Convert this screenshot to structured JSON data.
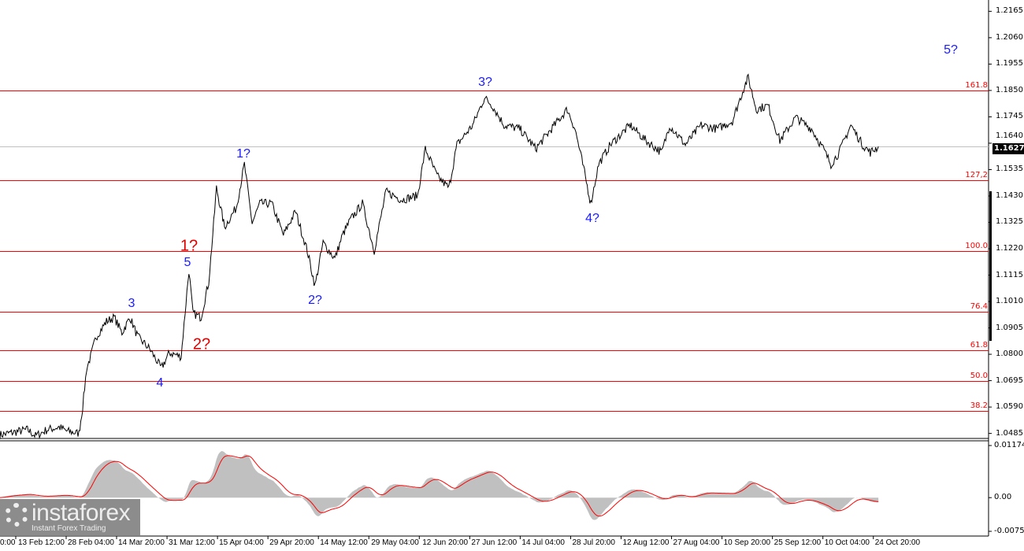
{
  "chart_data": {
    "type": "line",
    "title": "",
    "x_unit": "days since 14 Mar 20:00",
    "price_axis": {
      "ticks": [
        "1.2165",
        "1.2060",
        "1.1955",
        "1.1850",
        "1.1745",
        "1.1640",
        "1.1535",
        "1.1430",
        "1.1325",
        "1.1220",
        "1.1115",
        "1.1010",
        "1.0905",
        "1.0800",
        "1.0695",
        "1.0590",
        "1.0485"
      ],
      "range": [
        1.0465,
        1.221
      ]
    },
    "current_price": "1.1627",
    "time_axis": {
      "ticks": [
        "0:00",
        "13 Feb 12:00",
        "28 Feb 04:00",
        "14 Mar 20:00",
        "31 Mar 12:00",
        "15 Apr 04:00",
        "29 Apr 20:00",
        "14 May 12:00",
        "29 May 04:00",
        "12 Jun 20:00",
        "27 Jun 12:00",
        "14 Jul 04:00",
        "28 Jul 20:00",
        "12 Aug 12:00",
        "27 Aug 04:00",
        "10 Sep 20:00",
        "25 Sep 12:00",
        "10 Oct 04:00",
        "24 Oct 20:00"
      ],
      "tick_days": [
        -34,
        -19,
        -4,
        0,
        15,
        30,
        45,
        60,
        75,
        90,
        105,
        120,
        135,
        150,
        165,
        180,
        195,
        210,
        225
      ]
    },
    "price_waypoints": [
      [
        -34.7,
        1.0479
      ],
      [
        -26.5,
        1.05
      ],
      [
        -24.1,
        1.0475
      ],
      [
        -20.6,
        1.05
      ],
      [
        -17.1,
        1.051
      ],
      [
        -14.8,
        1.0494
      ],
      [
        -11.2,
        1.0485
      ],
      [
        -10.1,
        1.0588
      ],
      [
        -8.9,
        1.0744
      ],
      [
        -7.7,
        1.0791
      ],
      [
        -6.1,
        1.0869
      ],
      [
        -3.0,
        1.0931
      ],
      [
        -0.7,
        1.0947
      ],
      [
        1.6,
        1.0885
      ],
      [
        4.0,
        1.0947
      ],
      [
        6.3,
        1.0869
      ],
      [
        9.8,
        1.0822
      ],
      [
        13.3,
        1.0744
      ],
      [
        15.7,
        1.0806
      ],
      [
        19.2,
        1.0791
      ],
      [
        21.5,
        1.1134
      ],
      [
        22.7,
        1.0963
      ],
      [
        25.1,
        1.0947
      ],
      [
        27.4,
        1.1088
      ],
      [
        28.6,
        1.1275
      ],
      [
        29.7,
        1.1462
      ],
      [
        32.1,
        1.1306
      ],
      [
        35.6,
        1.1384
      ],
      [
        38.0,
        1.1556
      ],
      [
        40.3,
        1.1322
      ],
      [
        42.6,
        1.14
      ],
      [
        46.1,
        1.14
      ],
      [
        49.6,
        1.1275
      ],
      [
        53.2,
        1.1369
      ],
      [
        56.7,
        1.1212
      ],
      [
        59.0,
        1.1072
      ],
      [
        61.4,
        1.1244
      ],
      [
        64.9,
        1.1181
      ],
      [
        67.2,
        1.1275
      ],
      [
        69.6,
        1.1337
      ],
      [
        73.1,
        1.14
      ],
      [
        76.6,
        1.1212
      ],
      [
        80.1,
        1.1447
      ],
      [
        84.8,
        1.1415
      ],
      [
        89.5,
        1.1431
      ],
      [
        91.8,
        1.1618
      ],
      [
        95.3,
        1.1509
      ],
      [
        98.8,
        1.1462
      ],
      [
        101.2,
        1.1634
      ],
      [
        105.9,
        1.1712
      ],
      [
        109.4,
        1.1821
      ],
      [
        111.7,
        1.179
      ],
      [
        115.2,
        1.1712
      ],
      [
        119.9,
        1.1697
      ],
      [
        124.6,
        1.1618
      ],
      [
        129.3,
        1.1697
      ],
      [
        134.0,
        1.1775
      ],
      [
        136.3,
        1.1697
      ],
      [
        138.6,
        1.1556
      ],
      [
        141.0,
        1.14
      ],
      [
        143.3,
        1.1556
      ],
      [
        146.8,
        1.1634
      ],
      [
        152.7,
        1.1712
      ],
      [
        157.4,
        1.165
      ],
      [
        162.1,
        1.1603
      ],
      [
        164.4,
        1.1712
      ],
      [
        169.1,
        1.1634
      ],
      [
        173.8,
        1.1712
      ],
      [
        178.5,
        1.1697
      ],
      [
        183.1,
        1.1728
      ],
      [
        186.7,
        1.1868
      ],
      [
        187.8,
        1.19
      ],
      [
        190.2,
        1.1775
      ],
      [
        193.7,
        1.179
      ],
      [
        197.2,
        1.165
      ],
      [
        201.9,
        1.1743
      ],
      [
        206.6,
        1.1697
      ],
      [
        210.1,
        1.1618
      ],
      [
        212.4,
        1.1556
      ],
      [
        214.8,
        1.1603
      ],
      [
        218.3,
        1.1712
      ],
      [
        221.8,
        1.1634
      ],
      [
        224.1,
        1.1603
      ],
      [
        226.5,
        1.1627
      ]
    ],
    "fib_levels": [
      {
        "label": "161.8",
        "price": 1.185
      },
      {
        "label": "127,2",
        "price": 1.1494
      },
      {
        "label": "100.0",
        "price": 1.121
      },
      {
        "label": "76.4",
        "price": 1.097
      },
      {
        "label": "61.8",
        "price": 1.0815
      },
      {
        "label": "50.0",
        "price": 1.0695
      },
      {
        "label": "38.2",
        "price": 1.0575
      }
    ],
    "indicator": {
      "ticks": [
        "0.01174",
        "0.00",
        "-0.00759"
      ],
      "range": [
        -0.00759,
        0.01174
      ]
    },
    "wave_labels": [
      {
        "text": "3",
        "color": "blue"
      },
      {
        "text": "4",
        "color": "blue"
      },
      {
        "text": "5",
        "color": "blue"
      },
      {
        "text": "1?",
        "color": "red"
      },
      {
        "text": "2?",
        "color": "red"
      },
      {
        "text": "1?",
        "color": "blue"
      },
      {
        "text": "2?",
        "color": "blue"
      },
      {
        "text": "3?",
        "color": "blue"
      },
      {
        "text": "4?",
        "color": "blue"
      },
      {
        "text": "5?",
        "color": "blue"
      }
    ],
    "colors": {
      "price": "#000000",
      "fib": "#ff0000",
      "histogram": "#c0c0c0",
      "signal": "#ff0000",
      "wave_blue": "#1a1aff",
      "wave_red": "#e00000"
    }
  },
  "logo": {
    "name": "instaforex",
    "tagline": "Instant Forex Trading"
  }
}
